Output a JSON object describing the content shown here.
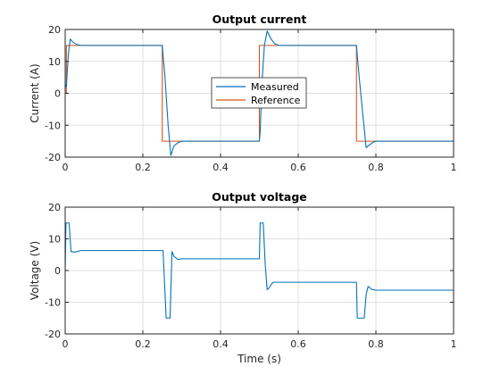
{
  "chart_data": [
    {
      "type": "line",
      "title": "Output current",
      "xlabel": "",
      "ylabel": "Current (A)",
      "xlim": [
        0,
        1
      ],
      "ylim": [
        -20,
        20
      ],
      "xticks": [
        0,
        0.2,
        0.4,
        0.6,
        0.8,
        1
      ],
      "yticks": [
        -20,
        -10,
        0,
        10,
        20
      ],
      "xtick_labels": [
        "0",
        "0.2",
        "0.4",
        "0.6",
        "0.8",
        "1"
      ],
      "ytick_labels": [
        "-20",
        "-10",
        "0",
        "10",
        "20"
      ],
      "grid": true,
      "legend": "center",
      "series": [
        {
          "name": "Measured",
          "color": "#0072BD",
          "x": [
            0,
            0.003,
            0.008,
            0.013,
            0.02,
            0.03,
            0.04,
            0.05,
            0.25,
            0.252,
            0.257,
            0.265,
            0.272,
            0.28,
            0.29,
            0.3,
            0.5,
            0.502,
            0.507,
            0.513,
            0.52,
            0.53,
            0.54,
            0.55,
            0.75,
            0.752,
            0.757,
            0.765,
            0.775,
            0.785,
            0.795,
            0.8,
            1
          ],
          "y": [
            3,
            2,
            12,
            17,
            16,
            15.3,
            15,
            15,
            15,
            12,
            5,
            -10,
            -19.5,
            -16.5,
            -15.5,
            -15,
            -15,
            -12,
            4,
            15,
            19.5,
            17,
            15.5,
            15,
            15,
            12,
            5,
            -5,
            -17,
            -16,
            -15.2,
            -15,
            -15
          ]
        },
        {
          "name": "Reference",
          "color": "#D95319",
          "x": [
            0,
            0.003,
            0.003,
            0.25,
            0.25,
            0.5,
            0.5,
            0.75,
            0.75,
            1
          ],
          "y": [
            0,
            0,
            15,
            15,
            -15,
            -15,
            15,
            15,
            -15,
            -15
          ]
        }
      ]
    },
    {
      "type": "line",
      "title": "Output voltage",
      "xlabel": "Time (s)",
      "ylabel": "Voltage (V)",
      "xlim": [
        0,
        1
      ],
      "ylim": [
        -20,
        20
      ],
      "xticks": [
        0,
        0.2,
        0.4,
        0.6,
        0.8,
        1
      ],
      "yticks": [
        -20,
        -10,
        0,
        10,
        20
      ],
      "xtick_labels": [
        "0",
        "0.2",
        "0.4",
        "0.6",
        "0.8",
        "1"
      ],
      "ytick_labels": [
        "-20",
        "-10",
        "0",
        "10",
        "20"
      ],
      "grid": true,
      "legend": "none",
      "series": [
        {
          "name": "",
          "color": "#0072BD",
          "x": [
            0,
            0.002,
            0.01,
            0.015,
            0.025,
            0.04,
            0.25,
            0.252,
            0.26,
            0.265,
            0.27,
            0.275,
            0.28,
            0.29,
            0.3,
            0.5,
            0.502,
            0.51,
            0.515,
            0.52,
            0.525,
            0.53,
            0.535,
            0.55,
            0.75,
            0.752,
            0.76,
            0.765,
            0.77,
            0.775,
            0.78,
            0.79,
            0.8,
            1
          ],
          "y": [
            0,
            15,
            15,
            6,
            5.8,
            6.3,
            6.3,
            6.3,
            -15,
            -15,
            -15,
            6,
            4.5,
            3.5,
            3.7,
            3.7,
            15,
            15,
            2,
            -6,
            -5.5,
            -4.5,
            -3.7,
            -3.7,
            -3.7,
            -15,
            -15,
            -15,
            -15,
            -7.5,
            -5,
            -6,
            -6.2,
            -6.2
          ]
        }
      ]
    }
  ]
}
